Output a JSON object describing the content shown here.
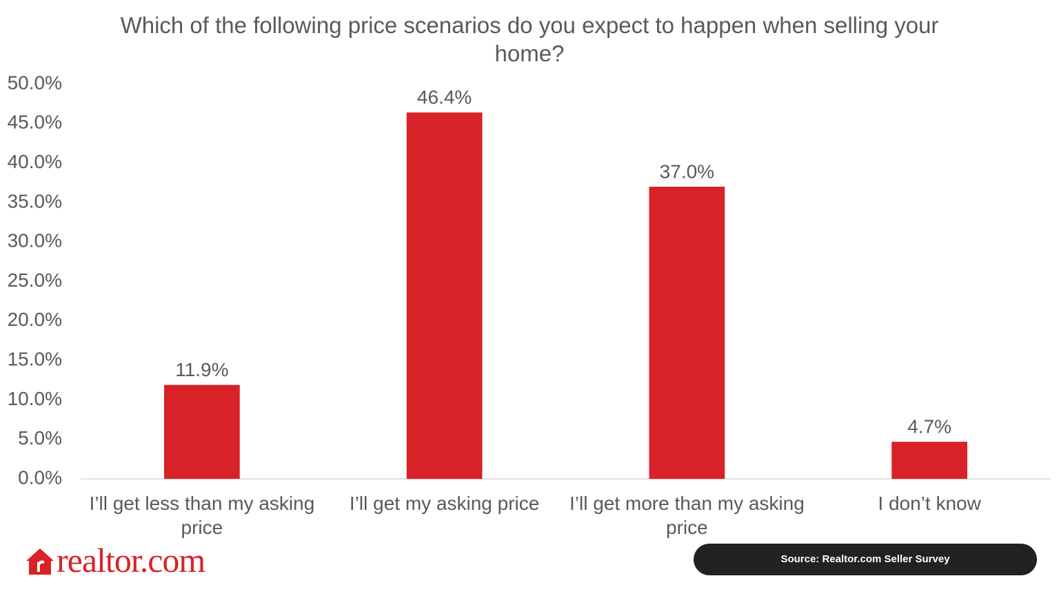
{
  "chart_data": {
    "type": "bar",
    "title": "Which of the following price scenarios do you expect to happen when selling your home?",
    "categories": [
      "I’ll get less than my asking price",
      "I’ll get my asking price",
      "I’ll get more than my asking price",
      "I don’t know"
    ],
    "values": [
      11.9,
      46.4,
      37.0,
      4.7
    ],
    "value_labels": [
      "11.9%",
      "46.4%",
      "37.0%",
      "4.7%"
    ],
    "color": "#d92228",
    "ylim": [
      0,
      50
    ],
    "yticks": [
      {
        "value": 0,
        "label": "0.0%"
      },
      {
        "value": 5,
        "label": "5.0%"
      },
      {
        "value": 10,
        "label": "10.0%"
      },
      {
        "value": 15,
        "label": "15.0%"
      },
      {
        "value": 20,
        "label": "20.0%"
      },
      {
        "value": 25,
        "label": "25.0%"
      },
      {
        "value": 30,
        "label": "30.0%"
      },
      {
        "value": 35,
        "label": "35.0%"
      },
      {
        "value": 40,
        "label": "40.0%"
      },
      {
        "value": 45,
        "label": "45.0%"
      },
      {
        "value": 50,
        "label": "50.0%"
      }
    ],
    "grid": false
  },
  "logo": "realtor.com",
  "source": "Source: Realtor.com Seller Survey"
}
